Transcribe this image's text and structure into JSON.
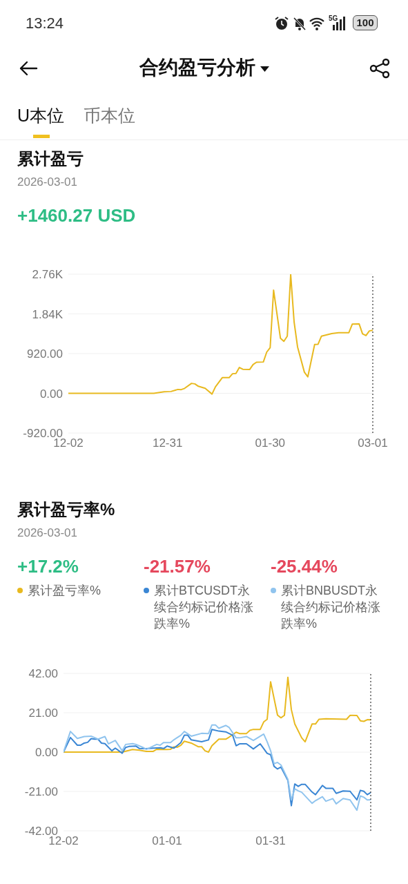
{
  "chart_data": [
    {
      "type": "line",
      "title": "累计盈亏",
      "subtitle": "2026-03-01",
      "annotations": [
        "+1460.27 USD",
        "13:24",
        "5G",
        "100",
        "合约盈亏分析",
        "U本位",
        "币本位"
      ],
      "x": [
        "2025-12-02",
        "2025-12-27",
        "2025-12-29",
        "2025-12-30",
        "2026-01-01",
        "2026-01-03",
        "2026-01-04",
        "2026-01-05",
        "2026-01-07",
        "2026-01-08",
        "2026-01-09",
        "2026-01-11",
        "2026-01-13",
        "2026-01-14",
        "2026-01-16",
        "2026-01-18",
        "2026-01-19",
        "2026-01-20",
        "2026-01-21",
        "2026-01-22",
        "2026-01-24",
        "2026-01-25",
        "2026-01-26",
        "2026-01-28",
        "2026-01-29",
        "2026-01-30",
        "2026-01-31",
        "2026-02-02",
        "2026-02-03",
        "2026-02-04",
        "2026-02-05",
        "2026-02-06",
        "2026-02-07",
        "2026-02-09",
        "2026-02-10",
        "2026-02-12",
        "2026-02-13",
        "2026-02-14",
        "2026-02-17",
        "2026-02-19",
        "2026-02-22",
        "2026-02-23",
        "2026-02-25",
        "2026-02-26",
        "2026-02-27",
        "2026-02-28",
        "2026-03-01"
      ],
      "values": [
        0,
        0,
        24,
        36,
        42,
        90,
        85,
        115,
        230,
        218,
        163,
        115,
        -18,
        151,
        363,
        363,
        454,
        460,
        599,
        557,
        551,
        666,
        720,
        726,
        956,
        1059,
        2390,
        1277,
        1204,
        1325,
        2750,
        1652,
        1077,
        490,
        381,
        1131,
        1137,
        1325,
        1385,
        1404,
        1404,
        1603,
        1609,
        1379,
        1337,
        1446,
        1460.27
      ],
      "color": "#e8b91f",
      "xlim": [
        "2025-12-02",
        "2026-03-01"
      ],
      "xticks": [
        {
          "value": "2025-12-02",
          "label": "12-02"
        },
        {
          "value": "2025-12-31",
          "label": "12-31"
        },
        {
          "value": "2026-01-30",
          "label": "01-30"
        },
        {
          "value": "2026-03-01",
          "label": "03-01"
        }
      ],
      "ylim": [
        -920,
        2760
      ],
      "yticks": [
        {
          "value": -920,
          "label": "-920.00"
        },
        {
          "value": 0,
          "label": "0.00"
        },
        {
          "value": 920,
          "label": "920.00"
        },
        {
          "value": 1840,
          "label": "1.84K"
        },
        {
          "value": 2760,
          "label": "2.76K"
        }
      ],
      "grid": "y",
      "marker": "none",
      "line_style": "solid",
      "ref_lines": [
        {
          "axis": "x",
          "value": "2026-03-01",
          "color": "#333333",
          "line_style": "dotted"
        }
      ]
    },
    {
      "type": "line",
      "title": "累计盈亏率%",
      "subtitle": "2026-03-01",
      "annotations": [
        "+17.2%",
        "-21.57%",
        "-25.44%"
      ],
      "series": [
        {
          "name": "累计盈亏率%",
          "color": "#e8b91f",
          "x": [
            "2025-12-02",
            "2025-12-19",
            "2025-12-22",
            "2025-12-23",
            "2025-12-24",
            "2025-12-26",
            "2025-12-28",
            "2025-12-29",
            "2026-01-01",
            "2026-01-02",
            "2026-01-03",
            "2026-01-04",
            "2026-01-05",
            "2026-01-06",
            "2026-01-08",
            "2026-01-10",
            "2026-01-11",
            "2026-01-12",
            "2026-01-13",
            "2026-01-14",
            "2026-01-16",
            "2026-01-18",
            "2026-01-19",
            "2026-01-21",
            "2026-01-22",
            "2026-01-24",
            "2026-01-25",
            "2026-01-26",
            "2026-01-28",
            "2026-01-29",
            "2026-01-30",
            "2026-01-31",
            "2026-02-02",
            "2026-02-03",
            "2026-02-04",
            "2026-02-05",
            "2026-02-06",
            "2026-02-07",
            "2026-02-09",
            "2026-02-10",
            "2026-02-12",
            "2026-02-13",
            "2026-02-14",
            "2026-02-16",
            "2026-02-22",
            "2026-02-23",
            "2026-02-25",
            "2026-02-26",
            "2026-02-27",
            "2026-02-28",
            "2026-03-01"
          ],
          "values": [
            0,
            0,
            1.4,
            1.2,
            1,
            0.4,
            0.4,
            1.5,
            1.4,
            1.5,
            2.8,
            2.6,
            3.6,
            5.8,
            4.8,
            2.9,
            2.9,
            0.7,
            0,
            3.4,
            6.9,
            6.9,
            8,
            10.6,
            9.9,
            9.9,
            11.6,
            12.1,
            12.1,
            16.1,
            17.5,
            37.5,
            19.7,
            18.3,
            19.6,
            39.9,
            22.7,
            15,
            7.6,
            5.5,
            15,
            15,
            17.5,
            17.8,
            17.5,
            19.6,
            19.5,
            16.7,
            16.4,
            17.3,
            17.2
          ]
        },
        {
          "name": "累计BTCUSDT永续合约标记价格涨跌率%",
          "color": "#3a86d4",
          "x": [
            "2025-12-02",
            "2025-12-04",
            "2025-12-06",
            "2025-12-07",
            "2025-12-08",
            "2025-12-09",
            "2025-12-10",
            "2025-12-11",
            "2025-12-12",
            "2025-12-13",
            "2025-12-14",
            "2025-12-16",
            "2025-12-17",
            "2025-12-19",
            "2025-12-20",
            "2025-12-21",
            "2025-12-23",
            "2025-12-24",
            "2025-12-26",
            "2025-12-28",
            "2025-12-30",
            "2025-12-31",
            "2026-01-01",
            "2026-01-03",
            "2026-01-05",
            "2026-01-06",
            "2026-01-07",
            "2026-01-08",
            "2026-01-11",
            "2026-01-13",
            "2026-01-14",
            "2026-01-16",
            "2026-01-18",
            "2026-01-20",
            "2026-01-21",
            "2026-01-22",
            "2026-01-24",
            "2026-01-26",
            "2026-01-28",
            "2026-01-30",
            "2026-01-31",
            "2026-02-01",
            "2026-02-02",
            "2026-02-03",
            "2026-02-05",
            "2026-02-06",
            "2026-02-07",
            "2026-02-08",
            "2026-02-09",
            "2026-02-10",
            "2026-02-12",
            "2026-02-13",
            "2026-02-15",
            "2026-02-16",
            "2026-02-18",
            "2026-02-19",
            "2026-02-21",
            "2026-02-23",
            "2026-02-25",
            "2026-02-26",
            "2026-02-27",
            "2026-02-28",
            "2026-03-01"
          ],
          "values": [
            0,
            7.8,
            3.7,
            3.7,
            4.8,
            5.2,
            7.2,
            6.9,
            6.9,
            4.8,
            4.5,
            0.7,
            2.1,
            -0.6,
            2.5,
            3,
            3.2,
            1.9,
            1.8,
            2.1,
            2.3,
            1.9,
            3.2,
            2.1,
            5.1,
            9,
            9,
            6.5,
            5.5,
            6.5,
            12.1,
            11.2,
            10.8,
            9,
            3.4,
            4.4,
            4.4,
            1.7,
            4.4,
            -0.7,
            -1.4,
            -7.6,
            -9,
            -8,
            -15.1,
            -28.6,
            -17,
            -18.3,
            -17.2,
            -17.2,
            -21.3,
            -22.7,
            -17.8,
            -19.3,
            -19.3,
            -22,
            -20.7,
            -20.9,
            -25.5,
            -20.4,
            -20.9,
            -22.7,
            -21.57
          ]
        },
        {
          "name": "累计BNBUSDT永续合约标记价格涨跌率%",
          "color": "#90c4ee",
          "x": [
            "2025-12-02",
            "2025-12-04",
            "2025-12-06",
            "2025-12-08",
            "2025-12-10",
            "2025-12-12",
            "2025-12-14",
            "2025-12-15",
            "2025-12-17",
            "2025-12-19",
            "2025-12-20",
            "2025-12-22",
            "2025-12-23",
            "2025-12-25",
            "2025-12-26",
            "2025-12-29",
            "2025-12-30",
            "2025-12-31",
            "2026-01-02",
            "2026-01-03",
            "2026-01-05",
            "2026-01-06",
            "2026-01-08",
            "2026-01-11",
            "2026-01-13",
            "2026-01-14",
            "2026-01-15",
            "2026-01-16",
            "2026-01-18",
            "2026-01-19",
            "2026-01-21",
            "2026-01-22",
            "2026-01-24",
            "2026-01-26",
            "2026-01-29",
            "2026-01-30",
            "2026-01-31",
            "2026-02-01",
            "2026-02-02",
            "2026-02-03",
            "2026-02-05",
            "2026-02-06",
            "2026-02-07",
            "2026-02-08",
            "2026-02-09",
            "2026-02-12",
            "2026-02-13",
            "2026-02-15",
            "2026-02-16",
            "2026-02-18",
            "2026-02-19",
            "2026-02-21",
            "2026-02-23",
            "2026-02-25",
            "2026-02-26",
            "2026-02-27",
            "2026-02-28",
            "2026-03-01"
          ],
          "values": [
            0,
            11,
            7.3,
            8.3,
            8.5,
            6.9,
            8.3,
            4.4,
            6.2,
            0.7,
            4.1,
            4.5,
            4.1,
            2.5,
            1.4,
            4.1,
            3.7,
            5.1,
            5.1,
            6.6,
            9,
            11,
            8.5,
            10,
            9.9,
            14.5,
            14.5,
            12.7,
            14.2,
            13.1,
            7.6,
            7.6,
            8.3,
            6.2,
            9.6,
            5.5,
            0.7,
            -6.2,
            -5.5,
            -6.9,
            -14.5,
            -25.5,
            -19.6,
            -20.7,
            -21.4,
            -27.3,
            -25.9,
            -23.8,
            -26.2,
            -24.8,
            -27.6,
            -24.8,
            -25.5,
            -31,
            -23.4,
            -24.1,
            -25.5,
            -25.44
          ]
        }
      ],
      "xlim": [
        "2025-12-02",
        "2026-03-01"
      ],
      "xticks": [
        {
          "value": "2025-12-02",
          "label": "12-02"
        },
        {
          "value": "2026-01-01",
          "label": "01-01"
        },
        {
          "value": "2026-01-31",
          "label": "01-31"
        }
      ],
      "ylim": [
        -42,
        42
      ],
      "yticks": [
        {
          "value": -42,
          "label": "-42.00"
        },
        {
          "value": -21,
          "label": "-21.00"
        },
        {
          "value": 0,
          "label": "0.00"
        },
        {
          "value": 21,
          "label": "21.00"
        },
        {
          "value": 42,
          "label": "42.00"
        }
      ],
      "grid": "y",
      "legend": "top",
      "marker": "none",
      "line_style": "solid",
      "ref_lines": [
        {
          "axis": "x",
          "value": "2026-03-01",
          "color": "#333333",
          "line_style": "dotted"
        }
      ]
    }
  ]
}
